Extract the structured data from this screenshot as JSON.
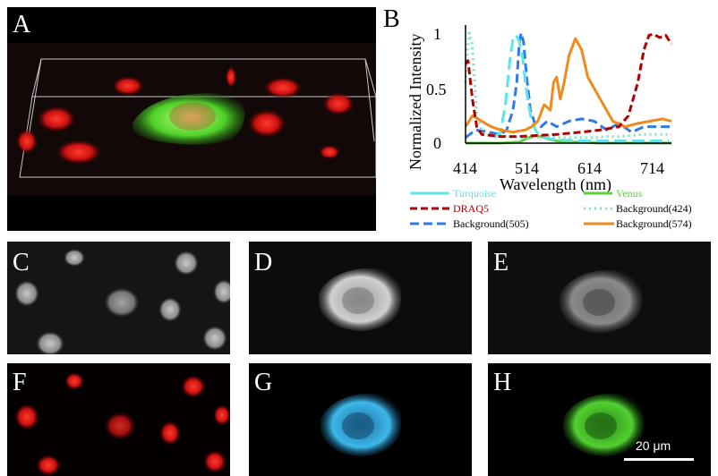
{
  "panels": {
    "A": "A",
    "B": "B",
    "C": "C",
    "D": "D",
    "E": "E",
    "F": "F",
    "G": "G",
    "H": "H"
  },
  "colors": {
    "turquoise": "#5fe3ea",
    "draq5": "#b00000",
    "venus": "#5ed13a",
    "bg424": "#7fe0c0",
    "bg505": "#2f7be6",
    "bg574": "#f08a1c",
    "nucleus_red": "#d01010",
    "cell_cyan": "#2aa6d8",
    "cell_green": "#3fbf2a"
  },
  "scale_bar": {
    "label": "20 μm"
  },
  "chart_data": {
    "type": "line",
    "xlabel": "Wavelength (nm)",
    "ylabel": "Normalized Intensity",
    "x_ticks": [
      "414",
      "514",
      "614",
      "714"
    ],
    "y_ticks": [
      "0",
      "0.5",
      "1"
    ],
    "xlim": [
      414,
      744
    ],
    "ylim": [
      0,
      1.05
    ],
    "series": [
      {
        "name": "Turquoise",
        "color": "#5fe3ea",
        "dash": "14,6",
        "x": [
          460,
          470,
          478,
          485,
          490,
          495,
          500,
          505,
          510,
          515,
          520,
          528,
          540,
          560,
          600,
          640,
          680,
          740
        ],
        "y": [
          0.05,
          0.1,
          0.35,
          0.75,
          0.95,
          0.98,
          0.93,
          0.8,
          0.55,
          0.35,
          0.2,
          0.1,
          0.05,
          0.03,
          0.02,
          0.02,
          0.02,
          0.02
        ]
      },
      {
        "name": "Venus",
        "color": "#5ed13a",
        "dash": "",
        "x": [
          414,
          440,
          470,
          500,
          515,
          525,
          535,
          545,
          560,
          580,
          600,
          630,
          660,
          700,
          744
        ],
        "y": [
          0.0,
          0.0,
          0.0,
          0.01,
          0.05,
          0.07,
          0.06,
          0.04,
          0.02,
          0.01,
          0.01,
          0.0,
          0.0,
          0.0,
          0.0
        ]
      },
      {
        "name": "DRAQ5",
        "color": "#b00000",
        "dash": "8,4",
        "x": [
          414,
          418,
          425,
          432,
          440,
          455,
          470,
          500,
          530,
          560,
          600,
          630,
          660,
          675,
          690,
          700,
          708,
          715,
          725,
          735,
          744
        ],
        "y": [
          0.72,
          0.75,
          0.4,
          0.15,
          0.08,
          0.07,
          0.06,
          0.06,
          0.07,
          0.08,
          0.1,
          0.12,
          0.15,
          0.25,
          0.55,
          0.85,
          0.98,
          0.99,
          0.96,
          0.98,
          0.9
        ]
      },
      {
        "name": "Background(424)",
        "color": "#7fe0c0",
        "dash": "2,4",
        "x": [
          414,
          417,
          420,
          424,
          428,
          432,
          440,
          450,
          460,
          470,
          480,
          500,
          520,
          540,
          560,
          580,
          600,
          620,
          640,
          660,
          680,
          700,
          720,
          744
        ],
        "y": [
          0.55,
          0.85,
          1.0,
          0.92,
          0.6,
          0.25,
          0.12,
          0.1,
          0.08,
          0.07,
          0.06,
          0.05,
          0.05,
          0.06,
          0.05,
          0.05,
          0.05,
          0.05,
          0.06,
          0.06,
          0.07,
          0.08,
          0.08,
          0.08
        ]
      },
      {
        "name": "Background(505)",
        "color": "#2f7be6",
        "dash": "10,5",
        "x": [
          414,
          430,
          450,
          470,
          480,
          490,
          496,
          500,
          503,
          507,
          512,
          518,
          525,
          535,
          545,
          560,
          580,
          600,
          620,
          640,
          660,
          680,
          700,
          744
        ],
        "y": [
          0.05,
          0.12,
          0.1,
          0.08,
          0.12,
          0.3,
          0.55,
          0.9,
          1.0,
          0.92,
          0.6,
          0.3,
          0.18,
          0.15,
          0.2,
          0.15,
          0.2,
          0.22,
          0.2,
          0.12,
          0.18,
          0.1,
          0.15,
          0.15
        ]
      },
      {
        "name": "Background(574)",
        "color": "#f08a1c",
        "dash": "",
        "x": [
          414,
          425,
          440,
          455,
          470,
          490,
          510,
          520,
          530,
          540,
          550,
          555,
          560,
          566,
          572,
          580,
          590,
          600,
          610,
          620,
          630,
          640,
          650,
          670,
          690,
          710,
          730,
          744
        ],
        "y": [
          0.15,
          0.25,
          0.2,
          0.15,
          0.12,
          0.1,
          0.12,
          0.15,
          0.2,
          0.35,
          0.3,
          0.55,
          0.6,
          0.4,
          0.55,
          0.8,
          0.95,
          0.85,
          0.6,
          0.5,
          0.4,
          0.3,
          0.2,
          0.15,
          0.18,
          0.2,
          0.22,
          0.2
        ]
      }
    ]
  }
}
